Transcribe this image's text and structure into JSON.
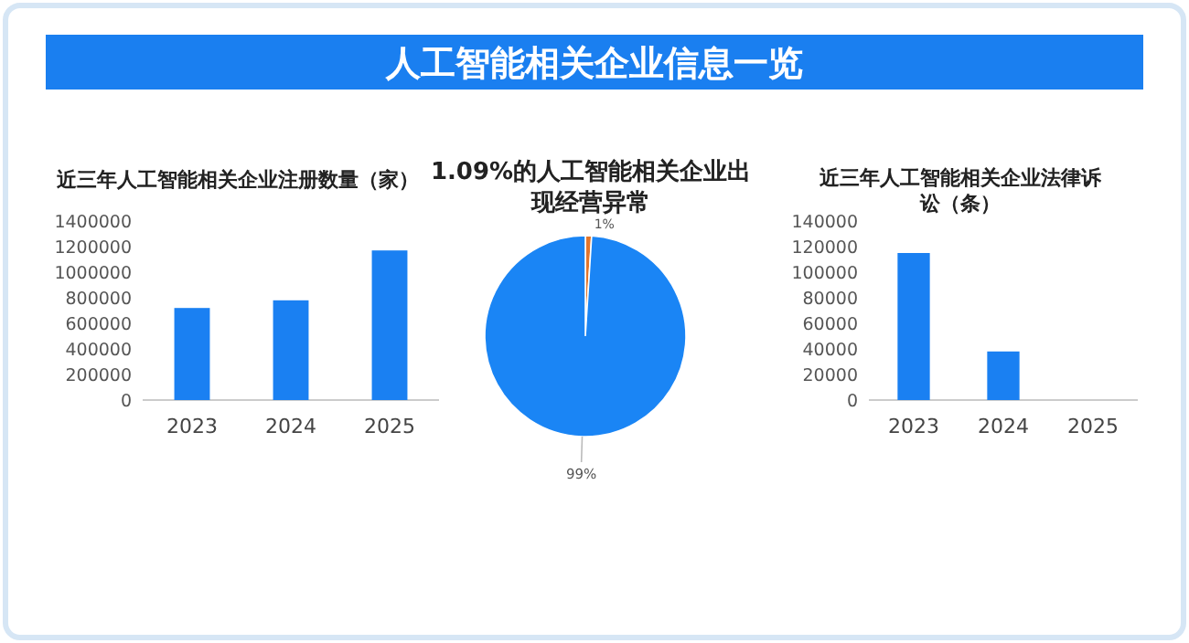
{
  "chart_data": [
    {
      "type": "other",
      "title": "人工智能相关企业信息一览"
    },
    {
      "type": "bar",
      "title": "近三年人工智能相关企业注册数量（家）",
      "categories": [
        "2023",
        "2024",
        "2025"
      ],
      "values": [
        720000,
        780000,
        1170000
      ],
      "color": "#1a80f2",
      "ylim": [
        0,
        1400000
      ],
      "yticks": [
        0,
        200000,
        400000,
        600000,
        800000,
        1000000,
        1200000,
        1400000
      ]
    },
    {
      "type": "pie",
      "title": "1.09%的人工智能相关企业出现经营异常",
      "categories": [
        null,
        null
      ],
      "values": [
        1,
        99
      ],
      "colors": [
        "#e2752c",
        "#1a85f5"
      ],
      "value_labels": [
        "1%",
        "99%"
      ]
    },
    {
      "type": "bar",
      "title": "近三年人工智能相关企业法律诉讼（条）",
      "categories": [
        "2023",
        "2024",
        "2025"
      ],
      "values": [
        115000,
        38000,
        0
      ],
      "color": "#1a80f2",
      "ylim": [
        0,
        140000
      ],
      "yticks": [
        0,
        20000,
        40000,
        60000,
        80000,
        100000,
        120000,
        140000
      ]
    }
  ]
}
